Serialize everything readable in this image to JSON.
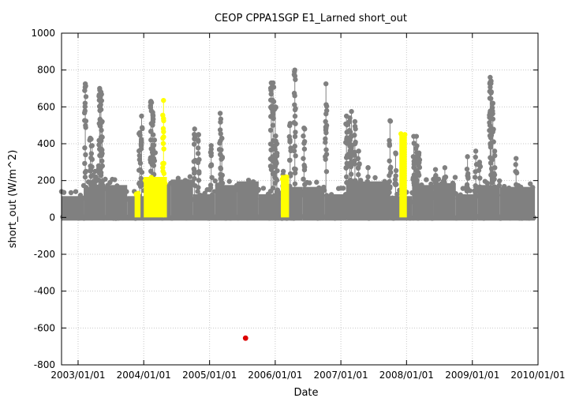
{
  "chart_data": {
    "type": "scatter",
    "title": "CEOP CPPA1SGP E1_Larned  short_out",
    "xlabel": "Date",
    "ylabel": "short_out (W/m^2)",
    "xlim": [
      "2002-10-01",
      "2010-01-01"
    ],
    "ylim": [
      -800,
      1000
    ],
    "y_ticks": [
      -800,
      -600,
      -400,
      -200,
      0,
      200,
      400,
      600,
      800,
      1000
    ],
    "x_ticks": [
      "2003/01/01",
      "2004/01/01",
      "2005/01/01",
      "2006/01/01",
      "2007/01/01",
      "2008/01/01",
      "2009/01/01",
      "2010/01/01"
    ],
    "grid": true,
    "legend": "none",
    "colors": {
      "normal": "#808080",
      "flagged": "#ffff00",
      "outlier": "#dd0000"
    },
    "baseline_bands": [
      {
        "start": "2002-10-01",
        "end": "2003-02-01",
        "max": 150
      },
      {
        "start": "2003-02-01",
        "end": "2003-06-01",
        "max": 200
      },
      {
        "start": "2003-06-01",
        "end": "2003-10-01",
        "max": 210
      },
      {
        "start": "2003-10-01",
        "end": "2004-02-01",
        "max": 150
      },
      {
        "start": "2004-02-01",
        "end": "2004-06-01",
        "max": 215
      },
      {
        "start": "2004-06-01",
        "end": "2004-10-01",
        "max": 240
      },
      {
        "start": "2004-10-01",
        "end": "2005-02-01",
        "max": 160
      },
      {
        "start": "2005-02-01",
        "end": "2005-06-01",
        "max": 210
      },
      {
        "start": "2005-06-01",
        "end": "2005-10-01",
        "max": 230
      },
      {
        "start": "2005-10-01",
        "end": "2006-02-01",
        "max": 160
      },
      {
        "start": "2006-02-01",
        "end": "2006-06-01",
        "max": 200
      },
      {
        "start": "2006-06-01",
        "end": "2006-10-01",
        "max": 200
      },
      {
        "start": "2006-10-01",
        "end": "2007-02-01",
        "max": 160
      },
      {
        "start": "2007-02-01",
        "end": "2007-06-01",
        "max": 230
      },
      {
        "start": "2007-06-01",
        "end": "2007-10-01",
        "max": 230
      },
      {
        "start": "2007-10-01",
        "end": "2008-02-01",
        "max": 150
      },
      {
        "start": "2008-02-01",
        "end": "2008-06-01",
        "max": 210
      },
      {
        "start": "2008-06-01",
        "end": "2008-10-01",
        "max": 220
      },
      {
        "start": "2008-10-01",
        "end": "2009-02-01",
        "max": 160
      },
      {
        "start": "2009-02-01",
        "end": "2009-06-01",
        "max": 210
      },
      {
        "start": "2009-06-01",
        "end": "2009-12-15",
        "max": 200
      }
    ],
    "spikes": [
      {
        "date": "2003-02-10",
        "max": 725,
        "color": "gray"
      },
      {
        "date": "2003-03-10",
        "max": 430,
        "color": "gray"
      },
      {
        "date": "2003-03-20",
        "max": 390,
        "color": "gray"
      },
      {
        "date": "2003-04-05",
        "max": 250,
        "color": "gray"
      },
      {
        "date": "2003-04-25",
        "max": 280,
        "color": "gray"
      },
      {
        "date": "2003-05-01",
        "max": 700,
        "color": "gray"
      },
      {
        "date": "2003-05-08",
        "max": 680,
        "color": "gray"
      },
      {
        "date": "2003-05-15",
        "max": 520,
        "color": "gray"
      },
      {
        "date": "2003-12-10",
        "max": 460,
        "color": "gray"
      },
      {
        "date": "2003-12-20",
        "max": 550,
        "color": "gray"
      },
      {
        "date": "2004-02-10",
        "max": 630,
        "color": "gray"
      },
      {
        "date": "2004-02-20",
        "max": 570,
        "color": "gray"
      },
      {
        "date": "2004-03-01",
        "max": 420,
        "color": "gray"
      },
      {
        "date": "2004-04-20",
        "max": 635,
        "color": "yellow"
      },
      {
        "date": "2004-10-10",
        "max": 480,
        "color": "gray"
      },
      {
        "date": "2004-11-01",
        "max": 450,
        "color": "gray"
      },
      {
        "date": "2005-01-10",
        "max": 390,
        "color": "gray"
      },
      {
        "date": "2005-03-01",
        "max": 565,
        "color": "gray"
      },
      {
        "date": "2005-03-10",
        "max": 430,
        "color": "gray"
      },
      {
        "date": "2005-12-10",
        "max": 730,
        "color": "gray"
      },
      {
        "date": "2005-12-20",
        "max": 730,
        "color": "gray"
      },
      {
        "date": "2006-01-01",
        "max": 600,
        "color": "gray"
      },
      {
        "date": "2006-01-10",
        "max": 400,
        "color": "gray"
      },
      {
        "date": "2006-02-15",
        "max": 250,
        "color": "gray"
      },
      {
        "date": "2006-03-25",
        "max": 510,
        "color": "gray"
      },
      {
        "date": "2006-04-20",
        "max": 800,
        "color": "gray"
      },
      {
        "date": "2006-06-10",
        "max": 485,
        "color": "gray"
      },
      {
        "date": "2006-10-10",
        "max": 725,
        "color": "gray"
      },
      {
        "date": "2007-02-01",
        "max": 550,
        "color": "gray"
      },
      {
        "date": "2007-02-20",
        "max": 540,
        "color": "gray"
      },
      {
        "date": "2007-03-01",
        "max": 575,
        "color": "gray"
      },
      {
        "date": "2007-03-20",
        "max": 520,
        "color": "gray"
      },
      {
        "date": "2007-04-10",
        "max": 360,
        "color": "gray"
      },
      {
        "date": "2007-06-01",
        "max": 270,
        "color": "gray"
      },
      {
        "date": "2007-10-01",
        "max": 525,
        "color": "gray"
      },
      {
        "date": "2007-11-01",
        "max": 350,
        "color": "gray"
      },
      {
        "date": "2008-02-10",
        "max": 440,
        "color": "gray"
      },
      {
        "date": "2008-02-25",
        "max": 440,
        "color": "gray"
      },
      {
        "date": "2008-03-10",
        "max": 350,
        "color": "gray"
      },
      {
        "date": "2008-06-10",
        "max": 260,
        "color": "gray"
      },
      {
        "date": "2008-08-01",
        "max": 270,
        "color": "gray"
      },
      {
        "date": "2008-12-05",
        "max": 330,
        "color": "gray"
      },
      {
        "date": "2009-01-20",
        "max": 360,
        "color": "gray"
      },
      {
        "date": "2009-02-10",
        "max": 300,
        "color": "gray"
      },
      {
        "date": "2009-04-10",
        "max": 760,
        "color": "gray"
      },
      {
        "date": "2009-04-15",
        "max": 740,
        "color": "gray"
      },
      {
        "date": "2009-04-25",
        "max": 620,
        "color": "gray"
      },
      {
        "date": "2009-05-05",
        "max": 360,
        "color": "gray"
      },
      {
        "date": "2009-09-01",
        "max": 320,
        "color": "gray"
      }
    ],
    "flagged_periods": [
      {
        "start": "2003-11-20",
        "end": "2003-12-05",
        "max": 140
      },
      {
        "start": "2004-01-10",
        "end": "2004-04-30",
        "max": 220
      },
      {
        "start": "2006-02-10",
        "end": "2006-03-10",
        "max": 230
      },
      {
        "start": "2007-12-01",
        "end": "2007-12-25",
        "max": 460
      }
    ],
    "outliers": [
      {
        "date": "2005-07-20",
        "value": -655
      }
    ]
  }
}
